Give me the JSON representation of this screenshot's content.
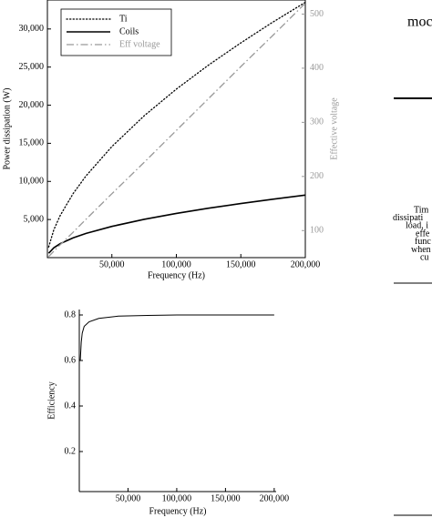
{
  "chart_data": [
    {
      "type": "line",
      "xlabel": "Frequency (Hz)",
      "ylabel": "Power dissipation (W)",
      "y2label": "Effective voltage",
      "x": [
        1000,
        5000,
        10000,
        20000,
        30000,
        50000,
        75000,
        100000,
        125000,
        150000,
        175000,
        200000
      ],
      "series": [
        {
          "name": "Ti",
          "color": "#000000",
          "line_style": "dotted",
          "values": [
            1394,
            3664,
            5554,
            8415,
            10734,
            14570,
            18603,
            22110,
            25270,
            28170,
            30920,
            33500
          ]
        },
        {
          "name": "Coils",
          "color": "#000000",
          "line_style": "solid",
          "values": [
            580,
            1297,
            1834,
            2593,
            3176,
            4100,
            5021,
            5798,
            6483,
            7101,
            7670,
            8200
          ]
        },
        {
          "name": "Eff voltage",
          "color": "#999999",
          "line_style": "dashdot",
          "axis": "y2",
          "values": [
            52,
            62,
            74,
            97,
            121,
            168,
            226,
            285,
            344,
            403,
            461,
            520
          ]
        }
      ],
      "xlim": [
        0,
        200000
      ],
      "xticks": [
        {
          "value": 50000,
          "label": "50,000"
        },
        {
          "value": 100000,
          "label": "100,000"
        },
        {
          "value": 150000,
          "label": "150,000"
        },
        {
          "value": 200000,
          "label": "200,000"
        }
      ],
      "ylim": [
        0,
        33800
      ],
      "yticks": [
        {
          "value": 5000,
          "label": "5,000"
        },
        {
          "value": 10000,
          "label": "10,000"
        },
        {
          "value": 15000,
          "label": "15,000"
        },
        {
          "value": 20000,
          "label": "20,000"
        },
        {
          "value": 25000,
          "label": "25,000"
        },
        {
          "value": 30000,
          "label": "30,000"
        }
      ],
      "y2lim": [
        50,
        526
      ],
      "y2ticks": [
        100,
        200,
        300,
        400,
        500
      ],
      "y2color": "#999999",
      "legend": "upper left",
      "grid": false
    },
    {
      "type": "line",
      "xlabel": "Frequency (Hz)",
      "ylabel": "Efficiency",
      "x": [
        1000,
        2000,
        3000,
        5000,
        10000,
        20000,
        40000,
        70000,
        100000,
        150000,
        200000
      ],
      "values": [
        0.6,
        0.68,
        0.72,
        0.75,
        0.77,
        0.785,
        0.795,
        0.798,
        0.8,
        0.8,
        0.8
      ],
      "color": "#000000",
      "xlim": [
        0,
        202000
      ],
      "xticks": [
        {
          "value": 50000,
          "label": "50,000"
        },
        {
          "value": 100000,
          "label": "100,000"
        },
        {
          "value": 150000,
          "label": "150,000"
        },
        {
          "value": 200000,
          "label": "200,000"
        }
      ],
      "ylim": [
        0.024,
        0.824
      ],
      "yticks": [
        0.2,
        0.4,
        0.6,
        0.8
      ],
      "grid": false
    }
  ],
  "side_text": {
    "heading": "moc",
    "caption_lines": [
      "Tim",
      "dissipati",
      "load, i",
      "effe",
      "func",
      "when",
      "cu"
    ]
  }
}
